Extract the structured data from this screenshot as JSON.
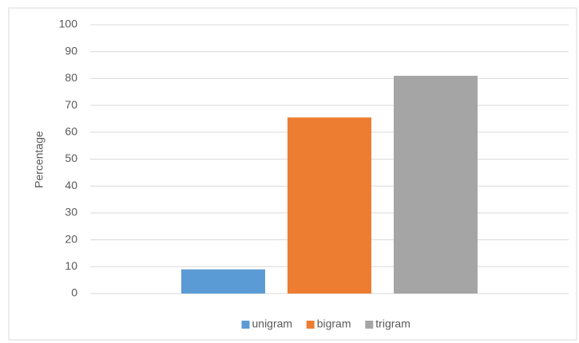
{
  "chart_data": {
    "type": "bar",
    "y_label": "Percentage",
    "categories": [
      null
    ],
    "series": [
      {
        "name": "unigram",
        "color": "#5b9bd5",
        "values": [
          9
        ]
      },
      {
        "name": "bigram",
        "color": "#ed7d31",
        "values": [
          65.5
        ]
      },
      {
        "name": "trigram",
        "color": "#a5a5a5",
        "values": [
          81
        ]
      }
    ],
    "ylim": [
      0,
      100
    ],
    "yticks": [
      0,
      10,
      20,
      30,
      40,
      50,
      60,
      70,
      80,
      90,
      100
    ],
    "grid": true,
    "legend": "bottom"
  }
}
